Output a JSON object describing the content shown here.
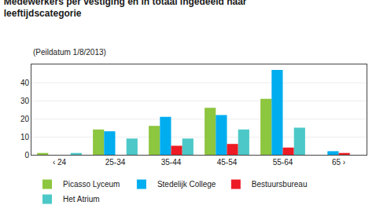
{
  "chart_data": {
    "type": "bar",
    "title": "Medewerkers per vestiging en in totaal ingedeeld naar\nleeftijdscategorie",
    "subtitle": "(Peildatum 1/8/2013)",
    "categories": [
      "‹ 24",
      "25-34",
      "35-44",
      "45-54",
      "55-64",
      "65 ›"
    ],
    "series": [
      {
        "name": "Picasso Lyceum",
        "color": "#8dc63f",
        "values": [
          1,
          14,
          16,
          26,
          31,
          0
        ]
      },
      {
        "name": "Stedelijk College",
        "color": "#00adef",
        "values": [
          0,
          13,
          21,
          22,
          47,
          2
        ]
      },
      {
        "name": "Bestuursbureau",
        "color": "#ed1c24",
        "values": [
          0,
          0,
          5,
          6,
          4,
          1
        ]
      },
      {
        "name": "Het Atrium",
        "color": "#4dc8c8",
        "values": [
          1,
          9,
          9,
          14,
          15,
          0
        ]
      }
    ],
    "ylim": [
      0,
      50
    ],
    "yticks": [
      0,
      10,
      20,
      30,
      40
    ],
    "grid": true,
    "legend": "lower left"
  }
}
